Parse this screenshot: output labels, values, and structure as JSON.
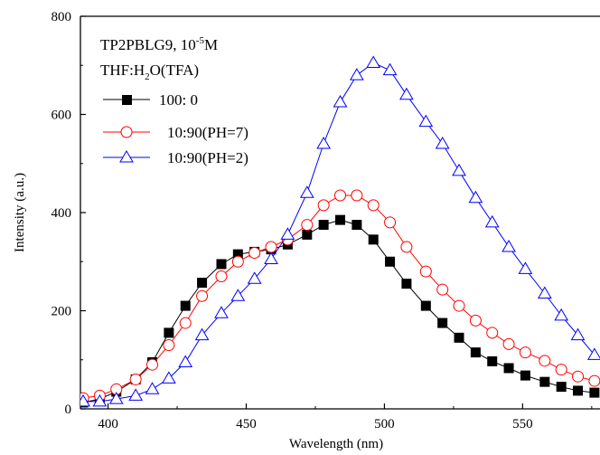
{
  "chart_data": {
    "type": "line",
    "xlabel": "Wavelength (nm)",
    "ylabel": "Intensity (a.u.)",
    "xlim": [
      390,
      578
    ],
    "ylim": [
      0,
      800
    ],
    "x_ticks": [
      400,
      450,
      500,
      550
    ],
    "y_ticks": [
      0,
      200,
      400,
      600,
      800
    ],
    "grid": false,
    "legend_position": "top-left",
    "annotation": {
      "line1_main": "TP2PBLG9, 10",
      "line1_sup": "-5",
      "line1_end": "M",
      "line2_pre": "THF:H",
      "line2_sub": "2",
      "line2_end": "O(TFA)"
    },
    "series": [
      {
        "name": "100: 0",
        "color": "#000000",
        "marker": "filled-square",
        "x": [
          391,
          397,
          403,
          410,
          416,
          422,
          428,
          434,
          441,
          447,
          453,
          459,
          465,
          472,
          478,
          484,
          490,
          496,
          502,
          508,
          515,
          521,
          527,
          533,
          539,
          545,
          551,
          558,
          564,
          570,
          576
        ],
        "y": [
          13,
          20,
          35,
          60,
          95,
          155,
          210,
          257,
          295,
          315,
          320,
          325,
          335,
          355,
          375,
          385,
          375,
          345,
          300,
          255,
          210,
          175,
          145,
          115,
          97,
          83,
          68,
          55,
          45,
          37,
          33
        ]
      },
      {
        "name": "10:90(PH=7)",
        "color": "#ff0000",
        "marker": "open-circle",
        "x": [
          391,
          397,
          403,
          410,
          416,
          422,
          428,
          434,
          441,
          447,
          453,
          459,
          465,
          472,
          478,
          484,
          490,
          496,
          502,
          508,
          515,
          521,
          527,
          533,
          539,
          545,
          551,
          558,
          564,
          570,
          576
        ],
        "y": [
          22,
          27,
          40,
          60,
          90,
          130,
          175,
          230,
          270,
          300,
          318,
          330,
          345,
          375,
          415,
          435,
          435,
          415,
          380,
          330,
          280,
          243,
          210,
          180,
          155,
          132,
          115,
          98,
          80,
          66,
          57
        ]
      },
      {
        "name": "10:90(PH=2)",
        "color": "#0000ff",
        "marker": "open-triangle",
        "x": [
          391,
          397,
          403,
          410,
          416,
          422,
          428,
          434,
          441,
          447,
          453,
          459,
          465,
          472,
          478,
          484,
          490,
          496,
          502,
          508,
          515,
          521,
          527,
          533,
          539,
          545,
          551,
          558,
          564,
          570,
          576
        ],
        "y": [
          15,
          15,
          20,
          27,
          40,
          62,
          95,
          150,
          195,
          230,
          265,
          305,
          355,
          440,
          540,
          625,
          680,
          705,
          690,
          640,
          585,
          540,
          485,
          430,
          380,
          330,
          285,
          235,
          190,
          150,
          110
        ]
      }
    ]
  }
}
